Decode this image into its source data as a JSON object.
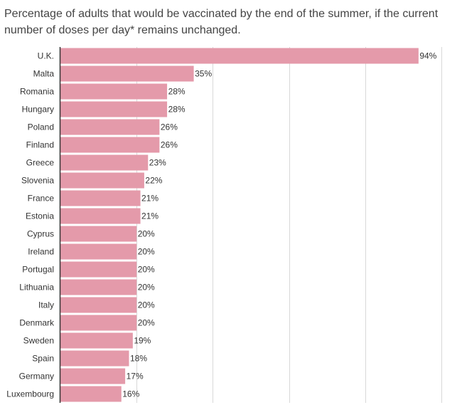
{
  "chart_data": {
    "type": "bar",
    "orientation": "horizontal",
    "title": "Percentage of adults that would be vaccinated by the end of the summer, if the current number of doses per day* remains unchanged.",
    "categories": [
      "U.K.",
      "Malta",
      "Romania",
      "Hungary",
      "Poland",
      "Finland",
      "Greece",
      "Slovenia",
      "France",
      "Estonia",
      "Cyprus",
      "Ireland",
      "Portugal",
      "Lithuania",
      "Italy",
      "Denmark",
      "Sweden",
      "Spain",
      "Germany",
      "Luxembourg"
    ],
    "values": [
      94,
      35,
      28,
      28,
      26,
      26,
      23,
      22,
      21,
      21,
      20,
      20,
      20,
      20,
      20,
      20,
      19,
      18,
      17,
      16
    ],
    "value_labels": [
      "94%",
      "35%",
      "28%",
      "28%",
      "26%",
      "26%",
      "23%",
      "22%",
      "21%",
      "21%",
      "20%",
      "20%",
      "20%",
      "20%",
      "20%",
      "20%",
      "19%",
      "18%",
      "17%",
      "16%"
    ],
    "xlim": [
      0,
      100
    ],
    "grid": true,
    "bar_color": "#e49aaa",
    "grid_color": "#d8d8d8",
    "axis_color": "#333333"
  }
}
